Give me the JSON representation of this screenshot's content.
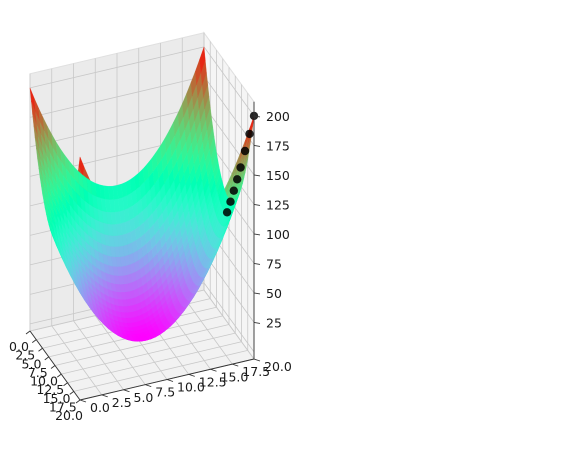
{
  "chart_data": {
    "type": "surface3d",
    "title": "",
    "xlabel": "",
    "ylabel": "",
    "zlabel": "",
    "function": "z = (x - 10)^2 + (y - 10)^2",
    "x_range": [
      0,
      20
    ],
    "y_range": [
      0,
      20
    ],
    "z_range": [
      0,
      200
    ],
    "colormap": "rainbow",
    "x_ticks": [
      "0.0",
      "2.5",
      "5.0",
      "7.5",
      "10.0",
      "12.5",
      "15.0",
      "17.5",
      "20.0"
    ],
    "x_tick_values": [
      0,
      2.5,
      5,
      7.5,
      10,
      12.5,
      15,
      17.5,
      20
    ],
    "y_ticks": [
      "0.0",
      "2.5",
      "5.0",
      "7.5",
      "10.0",
      "12.5",
      "15.0",
      "17.5",
      "20.0"
    ],
    "y_tick_values": [
      0,
      2.5,
      5,
      7.5,
      10,
      12.5,
      15,
      17.5,
      20
    ],
    "z_ticks": [
      "25",
      "50",
      "75",
      "100",
      "125",
      "150",
      "175",
      "200"
    ],
    "z_tick_values": [
      25,
      50,
      75,
      100,
      125,
      150,
      175,
      200
    ],
    "grid": true,
    "path_series": {
      "marker": "o",
      "color": "#000000",
      "points": [
        [
          20,
          20,
          200
        ],
        [
          19.6,
          19.6,
          184.3
        ],
        [
          19.2,
          19.2,
          169.3
        ],
        [
          18.8,
          18.8,
          154.9
        ],
        [
          18.5,
          18.5,
          144.5
        ],
        [
          18.2,
          18.2,
          134.5
        ],
        [
          17.9,
          17.9,
          124.8
        ],
        [
          17.6,
          17.6,
          115.5
        ]
      ]
    }
  }
}
